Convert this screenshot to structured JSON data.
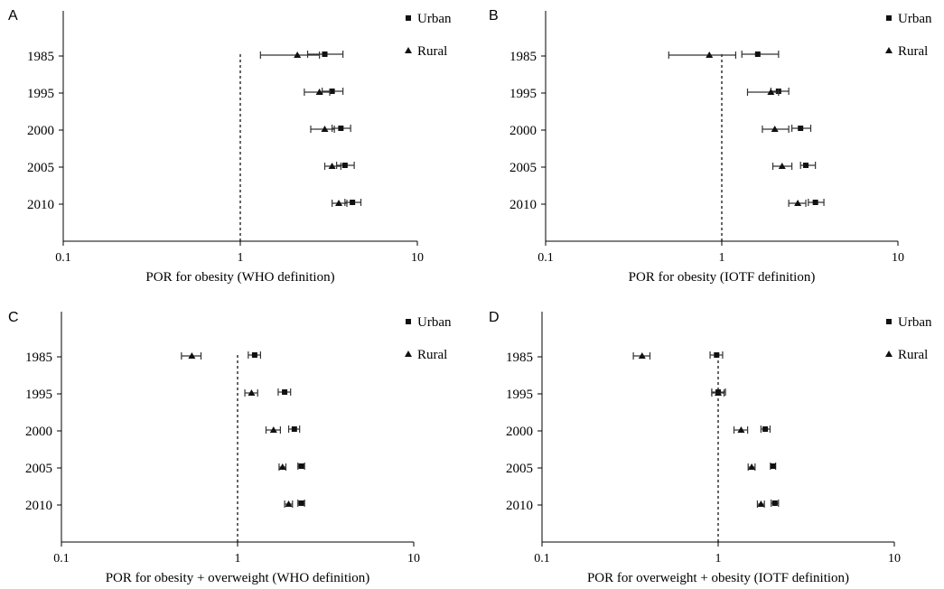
{
  "chart_data": [
    {
      "type": "forest",
      "panel_label": "A",
      "xlabel": "POR for obesity (WHO definition)",
      "xscale": "log",
      "xlim": [
        0.1,
        10
      ],
      "xticks": [
        "0.1",
        "1",
        "10"
      ],
      "reference_line": 1,
      "categories": [
        "1985",
        "1995",
        "2000",
        "2005",
        "2010"
      ],
      "legend_position": "top-right",
      "series": [
        {
          "name": "Urban",
          "marker": "square",
          "values": [
            3.0,
            3.3,
            3.7,
            3.9,
            4.3
          ],
          "ci_low": [
            2.4,
            2.9,
            3.3,
            3.5,
            3.9
          ],
          "ci_high": [
            3.8,
            3.8,
            4.2,
            4.4,
            4.8
          ]
        },
        {
          "name": "Rural",
          "marker": "triangle",
          "values": [
            2.1,
            2.8,
            3.0,
            3.3,
            3.6
          ],
          "ci_low": [
            1.3,
            2.3,
            2.5,
            3.0,
            3.3
          ],
          "ci_high": [
            2.8,
            3.2,
            3.4,
            3.7,
            4.0
          ]
        }
      ]
    },
    {
      "type": "forest",
      "panel_label": "B",
      "xlabel": "POR for obesity (IOTF definition)",
      "xscale": "log",
      "xlim": [
        0.1,
        10
      ],
      "xticks": [
        "0.1",
        "1",
        "10"
      ],
      "reference_line": 1,
      "categories": [
        "1985",
        "1995",
        "2000",
        "2005",
        "2010"
      ],
      "legend_position": "top-right",
      "series": [
        {
          "name": "Urban",
          "marker": "square",
          "values": [
            1.6,
            2.1,
            2.8,
            3.0,
            3.4
          ],
          "ci_low": [
            1.3,
            1.9,
            2.5,
            2.8,
            3.1
          ],
          "ci_high": [
            2.1,
            2.4,
            3.2,
            3.4,
            3.8
          ]
        },
        {
          "name": "Rural",
          "marker": "triangle",
          "values": [
            0.85,
            1.9,
            2.0,
            2.2,
            2.7
          ],
          "ci_low": [
            0.5,
            1.4,
            1.7,
            1.95,
            2.4
          ],
          "ci_high": [
            1.2,
            2.1,
            2.4,
            2.5,
            3.0
          ]
        }
      ]
    },
    {
      "type": "forest",
      "panel_label": "C",
      "xlabel": "POR for obesity + overweight (WHO definition)",
      "xscale": "log",
      "xlim": [
        0.1,
        10
      ],
      "xticks": [
        "0.1",
        "1",
        "10"
      ],
      "reference_line": 1,
      "categories": [
        "1985",
        "1995",
        "2000",
        "2005",
        "2010"
      ],
      "legend_position": "top-right",
      "series": [
        {
          "name": "Urban",
          "marker": "square",
          "values": [
            1.25,
            1.85,
            2.1,
            2.3,
            2.3
          ],
          "ci_low": [
            1.15,
            1.7,
            1.95,
            2.2,
            2.2
          ],
          "ci_high": [
            1.35,
            2.0,
            2.25,
            2.4,
            2.4
          ]
        },
        {
          "name": "Rural",
          "marker": "triangle",
          "values": [
            0.55,
            1.2,
            1.6,
            1.8,
            1.95
          ],
          "ci_low": [
            0.48,
            1.1,
            1.45,
            1.72,
            1.85
          ],
          "ci_high": [
            0.62,
            1.3,
            1.75,
            1.88,
            2.05
          ]
        }
      ]
    },
    {
      "type": "forest",
      "panel_label": "D",
      "xlabel": "POR for overweight + obesity (IOTF definition)",
      "xscale": "log",
      "xlim": [
        0.1,
        10
      ],
      "xticks": [
        "0.1",
        "1",
        "10"
      ],
      "reference_line": 1,
      "categories": [
        "1985",
        "1995",
        "2000",
        "2005",
        "2010"
      ],
      "legend_position": "top-right",
      "series": [
        {
          "name": "Urban",
          "marker": "square",
          "values": [
            0.98,
            1.0,
            1.85,
            2.05,
            2.1
          ],
          "ci_low": [
            0.9,
            0.92,
            1.75,
            1.98,
            2.0
          ],
          "ci_high": [
            1.06,
            1.1,
            1.97,
            2.12,
            2.2
          ]
        },
        {
          "name": "Rural",
          "marker": "triangle",
          "values": [
            0.37,
            1.0,
            1.35,
            1.55,
            1.75
          ],
          "ci_low": [
            0.33,
            0.92,
            1.23,
            1.48,
            1.67
          ],
          "ci_high": [
            0.41,
            1.08,
            1.47,
            1.62,
            1.83
          ]
        }
      ]
    }
  ]
}
